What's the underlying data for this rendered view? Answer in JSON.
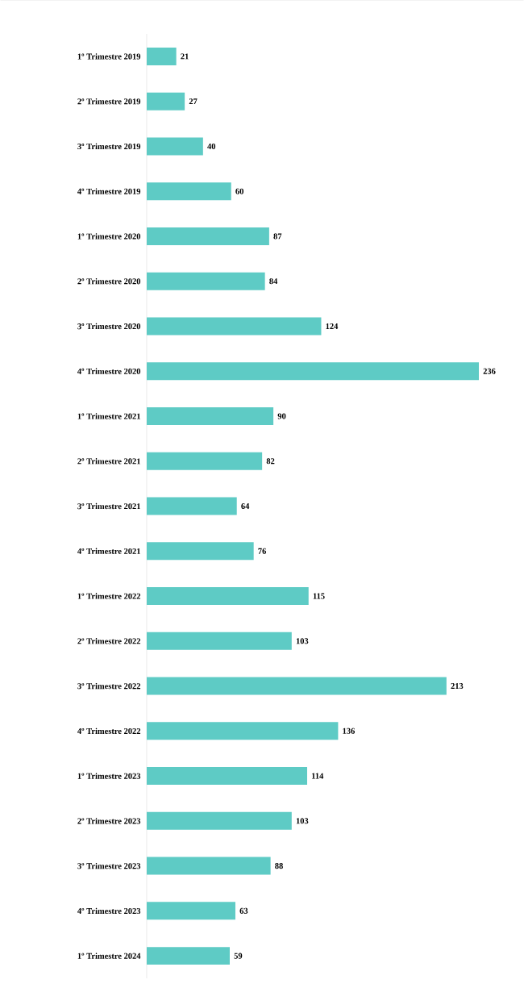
{
  "chart_data": {
    "type": "bar",
    "orientation": "horizontal",
    "categories": [
      "1º Trimestre 2019",
      "2º Trimestre 2019",
      "3º Trimestre 2019",
      "4º Trimestre 2019",
      "1º Trimestre 2020",
      "2º Trimestre 2020",
      "3º Trimestre 2020",
      "4º Trimestre 2020",
      "1º Trimestre 2021",
      "2º Trimestre 2021",
      "3º Trimestre 2021",
      "4º Trimestre 2021",
      "1º Trimestre 2022",
      "2º Trimestre 2022",
      "3º Trimestre 2022",
      "4º Trimestre 2022",
      "1º Trimestre 2023",
      "2º Trimestre 2023",
      "3º Trimestre 2023",
      "4º Trimestre 2023",
      "1º Trimestre 2024"
    ],
    "values": [
      21,
      27,
      40,
      60,
      87,
      84,
      124,
      236,
      90,
      82,
      64,
      76,
      115,
      103,
      213,
      136,
      114,
      103,
      88,
      63,
      59
    ],
    "color": "#5ecbc5",
    "data_labels": true
  }
}
